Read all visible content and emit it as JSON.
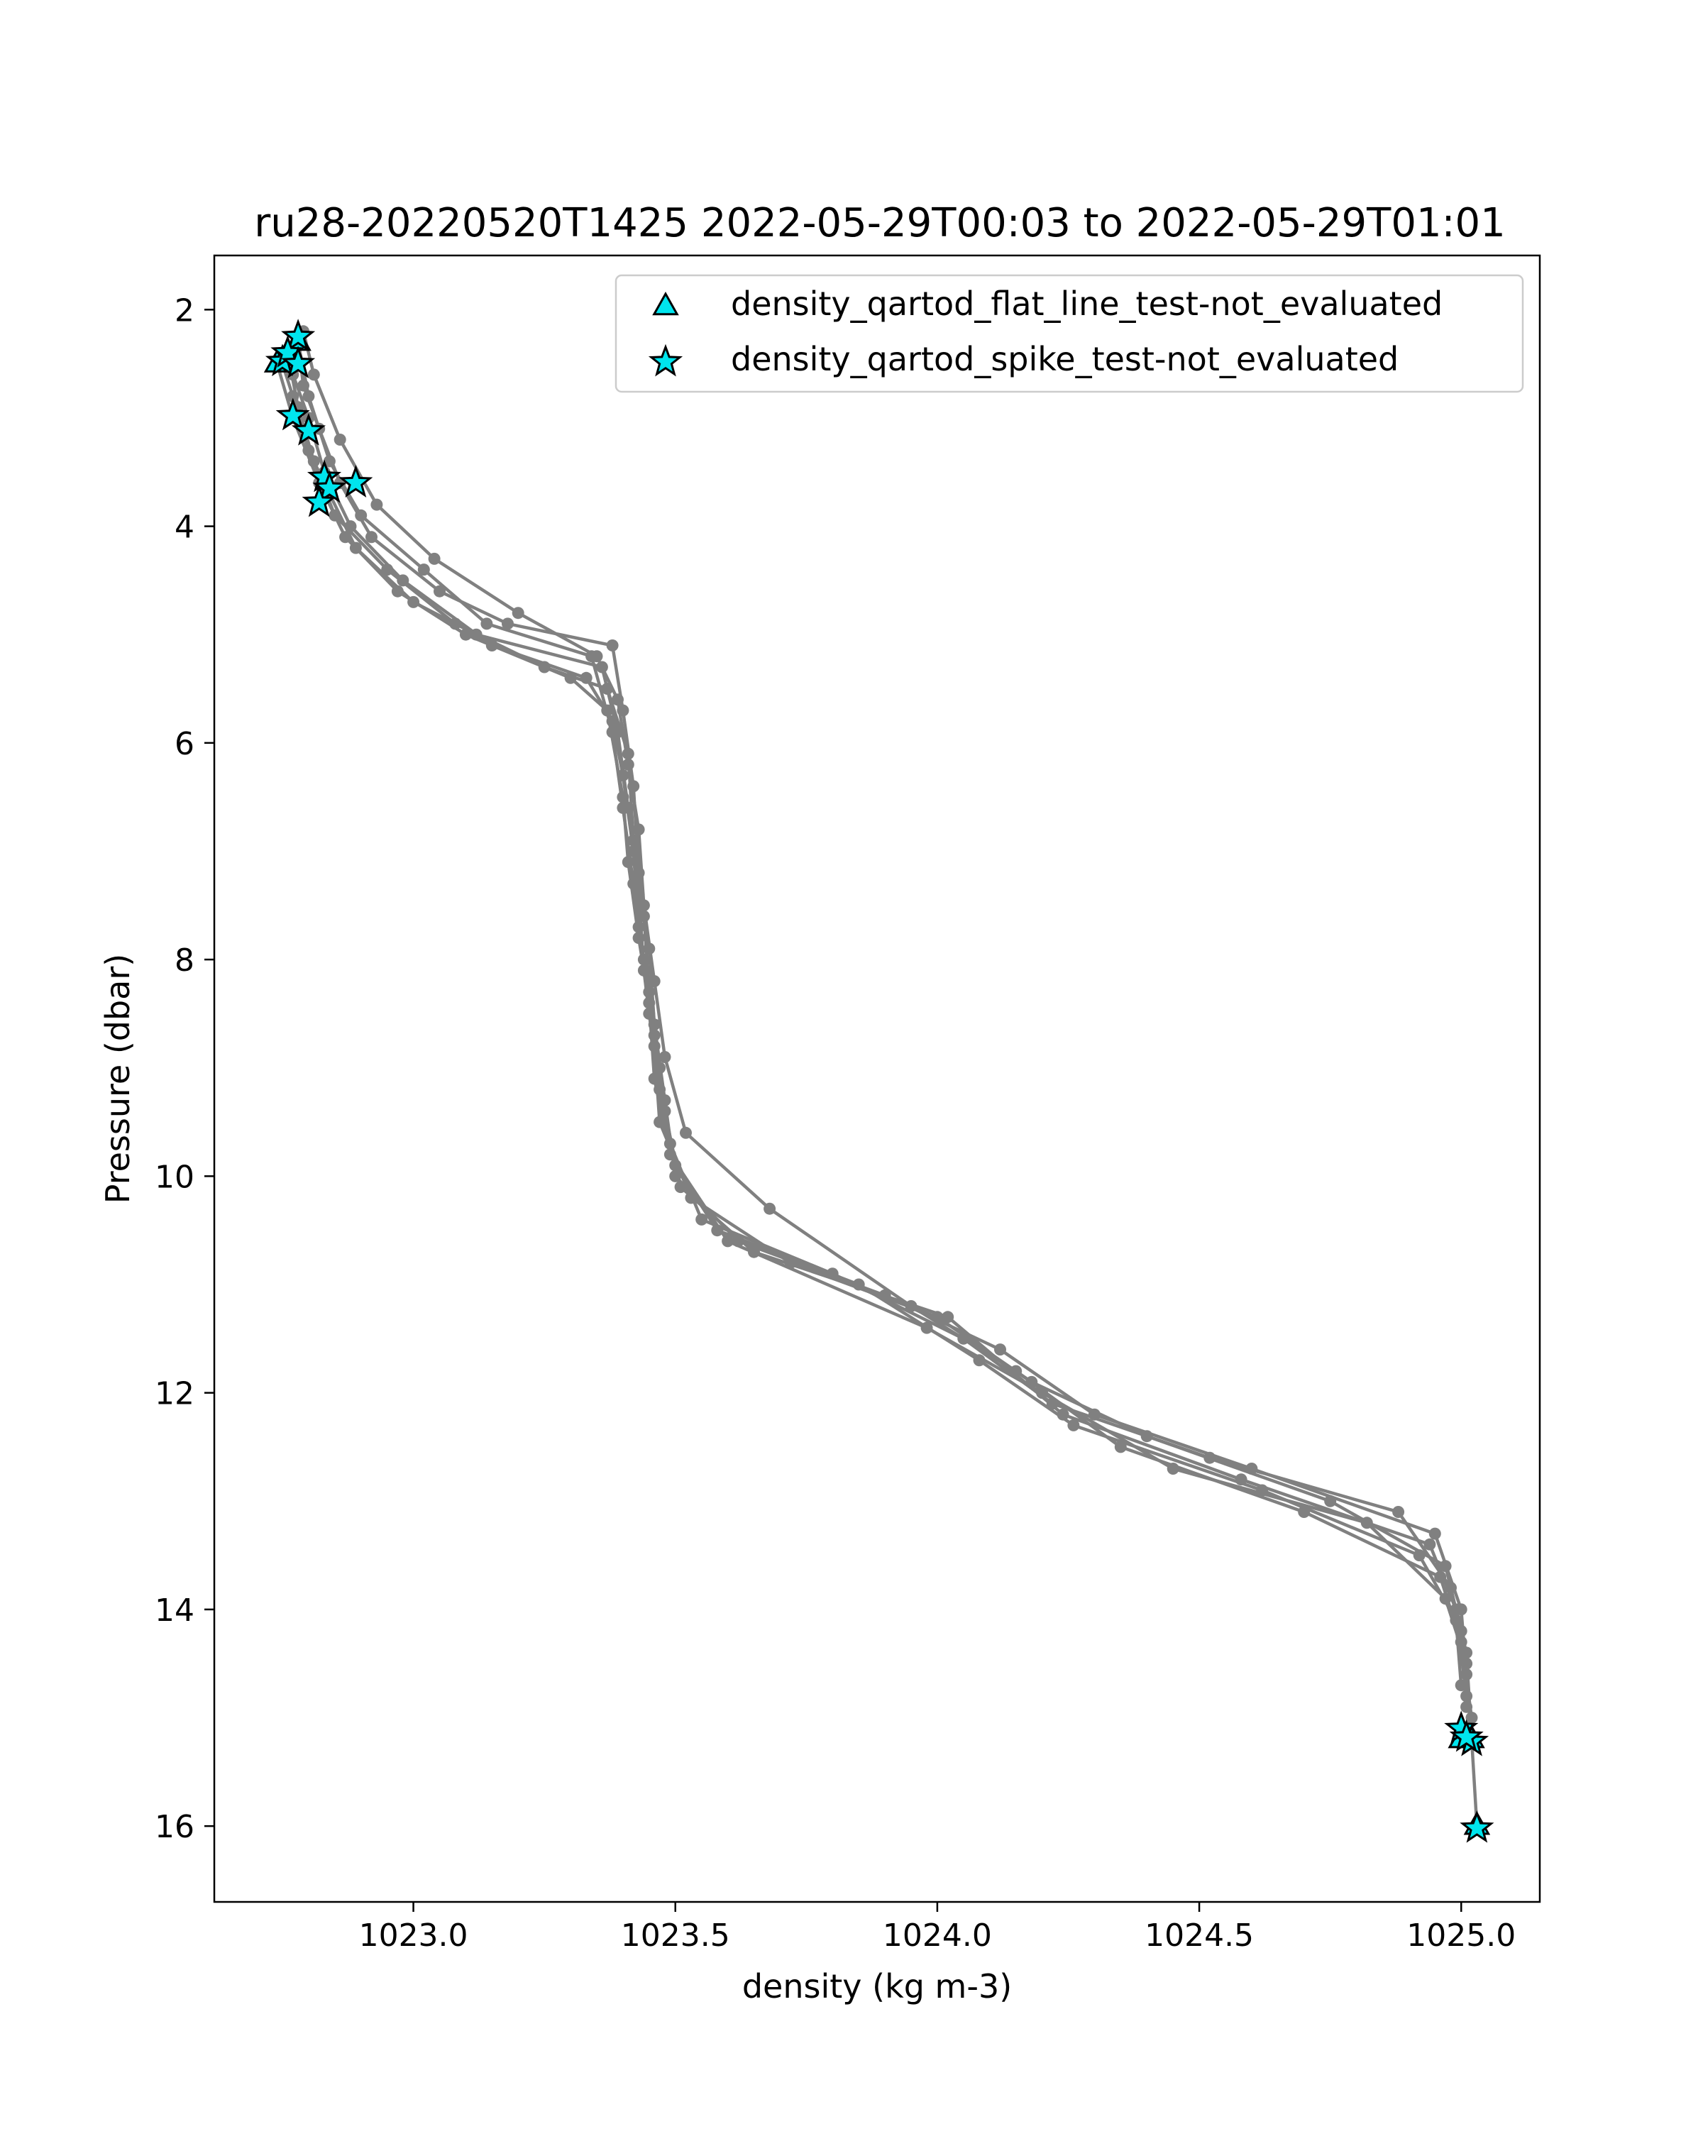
{
  "chart_data": {
    "type": "line",
    "title": "ru28-20220520T1425 2022-05-29T00:03 to 2022-05-29T01:01",
    "xlabel": "density (kg m-3)",
    "ylabel": "Pressure (dbar)",
    "xlim": [
      1022.62,
      1025.15
    ],
    "ylim": [
      16.7,
      1.5
    ],
    "y_inverted": true,
    "grid": false,
    "legend_position": "upper-right",
    "xticks": [
      1023.0,
      1023.5,
      1024.0,
      1024.5,
      1025.0
    ],
    "xtick_labels": [
      "1023.0",
      "1023.5",
      "1024.0",
      "1024.5",
      "1025.0"
    ],
    "yticks": [
      2,
      4,
      6,
      8,
      10,
      12,
      14,
      16
    ],
    "ytick_labels": [
      "2",
      "4",
      "6",
      "8",
      "10",
      "12",
      "14",
      "16"
    ],
    "line_color": "#808080",
    "flag_color": "#00e5ee",
    "series": [
      {
        "x": [
          1022.78,
          1022.79,
          1022.82,
          1022.86,
          1022.92,
          1023.05,
          1023.18,
          1023.38,
          1023.4,
          1023.42,
          1023.43,
          1023.45,
          1023.46,
          1023.48,
          1023.5,
          1023.62,
          1023.9,
          1024.12,
          1024.3,
          1024.6,
          1024.95,
          1025.0,
          1025.01,
          1025.02,
          1025.03
        ],
        "y": [
          2.3,
          2.7,
          3.1,
          3.6,
          4.1,
          4.6,
          4.9,
          5.1,
          5.7,
          6.4,
          7.2,
          7.9,
          8.6,
          9.3,
          10.0,
          10.6,
          11.1,
          11.6,
          12.2,
          12.7,
          13.3,
          14.0,
          14.6,
          15.2,
          16.0
        ]
      },
      {
        "x": [
          1022.75,
          1022.77,
          1022.8,
          1022.84,
          1022.89,
          1023.0,
          1023.12,
          1023.36,
          1023.39,
          1023.41,
          1023.43,
          1023.44,
          1023.46,
          1023.47,
          1023.53,
          1023.72,
          1024.0,
          1024.18,
          1024.4,
          1024.75,
          1024.97,
          1025.0,
          1025.01
        ],
        "y": [
          2.5,
          2.8,
          3.3,
          3.7,
          4.2,
          4.7,
          5.0,
          5.3,
          5.9,
          6.6,
          7.4,
          8.1,
          8.8,
          9.5,
          10.2,
          10.8,
          11.3,
          11.9,
          12.4,
          13.0,
          13.6,
          14.2,
          14.9
        ]
      },
      {
        "x": [
          1022.76,
          1022.78,
          1022.81,
          1022.85,
          1022.95,
          1023.08,
          1023.25,
          1023.37,
          1023.41,
          1023.42,
          1023.44,
          1023.45,
          1023.47,
          1023.49,
          1023.55,
          1023.8,
          1024.05,
          1024.22,
          1024.52,
          1024.88,
          1024.98,
          1025.01,
          1025.02
        ],
        "y": [
          2.4,
          2.9,
          3.4,
          3.9,
          4.4,
          4.9,
          5.3,
          5.5,
          6.1,
          6.9,
          7.6,
          8.3,
          9.0,
          9.7,
          10.4,
          10.9,
          11.5,
          12.1,
          12.6,
          13.1,
          13.8,
          14.4,
          15.2
        ]
      },
      {
        "x": [
          1022.77,
          1022.8,
          1022.83,
          1022.88,
          1022.98,
          1023.15,
          1023.33,
          1023.38,
          1023.4,
          1023.42,
          1023.43,
          1023.45,
          1023.47,
          1023.5,
          1023.58,
          1023.85,
          1024.08,
          1024.26,
          1024.62,
          1024.92,
          1024.99,
          1025.0
        ],
        "y": [
          2.6,
          3.0,
          3.5,
          4.0,
          4.5,
          5.1,
          5.4,
          5.8,
          6.3,
          7.0,
          7.7,
          8.5,
          9.2,
          9.9,
          10.5,
          11.0,
          11.7,
          12.3,
          12.9,
          13.5,
          14.1,
          14.7
        ]
      },
      {
        "x": [
          1022.79,
          1022.81,
          1022.86,
          1022.93,
          1023.04,
          1023.2,
          1023.35,
          1023.39,
          1023.41,
          1023.43,
          1023.44,
          1023.46,
          1023.48,
          1023.52,
          1023.68,
          1023.95,
          1024.15,
          1024.35,
          1024.7,
          1024.96,
          1025.0,
          1025.02
        ],
        "y": [
          2.2,
          2.6,
          3.2,
          3.8,
          4.3,
          4.8,
          5.2,
          5.6,
          6.2,
          6.8,
          7.5,
          8.2,
          8.9,
          9.6,
          10.3,
          11.2,
          11.8,
          12.5,
          13.1,
          13.7,
          14.3,
          15.0
        ]
      },
      {
        "x": [
          1022.74,
          1022.77,
          1022.82,
          1022.87,
          1022.97,
          1023.1,
          1023.3,
          1023.37,
          1023.4,
          1023.41,
          1023.43,
          1023.45,
          1023.46,
          1023.49,
          1023.6,
          1023.98,
          1024.2,
          1024.45,
          1024.82,
          1024.97,
          1025.01
        ],
        "y": [
          2.5,
          3.0,
          3.6,
          4.1,
          4.6,
          5.0,
          5.4,
          5.7,
          6.5,
          7.1,
          7.8,
          8.4,
          9.1,
          9.8,
          10.6,
          11.4,
          12.0,
          12.7,
          13.2,
          13.9,
          14.5
        ]
      },
      {
        "x": [
          1022.78,
          1022.8,
          1022.84,
          1022.9,
          1023.02,
          1023.14,
          1023.34,
          1023.38,
          1023.4,
          1023.42,
          1023.44,
          1023.46,
          1023.48,
          1023.51,
          1023.65,
          1024.02,
          1024.24,
          1024.58,
          1024.94,
          1024.99,
          1025.01
        ],
        "y": [
          2.3,
          2.8,
          3.4,
          3.9,
          4.4,
          4.9,
          5.2,
          5.9,
          6.6,
          7.3,
          8.0,
          8.7,
          9.4,
          10.1,
          10.7,
          11.3,
          12.2,
          12.8,
          13.4,
          14.0,
          14.8
        ]
      }
    ],
    "flagged": [
      {
        "name": "density_qartod_flat_line_test-not_evaluated",
        "marker": "triangle",
        "x": [
          1022.74,
          1022.76,
          1022.78,
          1025.0,
          1025.02,
          1025.03
        ],
        "y": [
          2.5,
          2.4,
          2.3,
          15.2,
          15.2,
          16.0
        ]
      },
      {
        "name": "density_qartod_spike_test-not_evaluated",
        "marker": "star",
        "x": [
          1022.78,
          1022.75,
          1022.76,
          1022.78,
          1022.77,
          1022.8,
          1022.83,
          1022.89,
          1022.84,
          1022.82,
          1025.0,
          1025.02,
          1025.01,
          1025.03
        ],
        "y": [
          2.25,
          2.48,
          2.4,
          2.5,
          2.98,
          3.12,
          3.55,
          3.6,
          3.65,
          3.78,
          15.1,
          15.22,
          15.18,
          16.02
        ]
      }
    ]
  }
}
